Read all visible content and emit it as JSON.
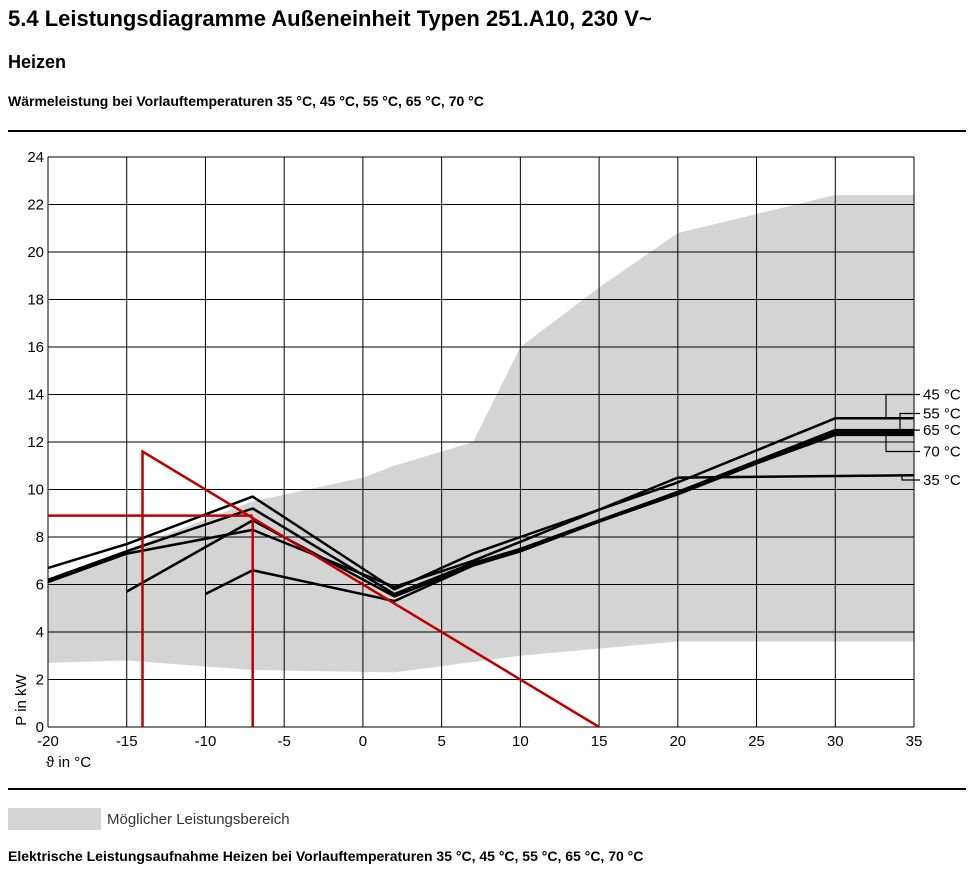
{
  "header": {
    "title": "5.4 Leistungsdiagramme Außeneinheit Typen 251.A10, 230 V~",
    "subtitle": "Heizen",
    "chart_caption": "Wärmeleistung bei Vorlauftemperaturen 35 °C, 45 °C, 55 °C, 65 °C, 70 °C"
  },
  "legend": {
    "area_label": "Möglicher Leistungsbereich"
  },
  "footer": {
    "text": "Elektrische Leistungsaufnahme Heizen bei Vorlauftemperaturen 35 °C, 45 °C, 55 °C, 65 °C, 70 °C"
  },
  "colors": {
    "area": "#d4d4d4",
    "curve": "#000000",
    "example": "#c00000",
    "grid": "#000000"
  },
  "chart_data": {
    "type": "line",
    "title": "",
    "xlabel": "ϑ in °C",
    "ylabel": "P in kW",
    "xlim": [
      -20,
      35
    ],
    "ylim": [
      0,
      24
    ],
    "xticks": [
      -20,
      -15,
      -10,
      -5,
      0,
      5,
      10,
      15,
      20,
      25,
      30,
      35
    ],
    "yticks": [
      0,
      2,
      4,
      6,
      8,
      10,
      12,
      14,
      16,
      18,
      20,
      22,
      24
    ],
    "grid": true,
    "area": {
      "name": "Möglicher Leistungsbereich",
      "upper": [
        [
          -20,
          6.2
        ],
        [
          -7,
          9.5
        ],
        [
          0,
          10.5
        ],
        [
          2,
          11
        ],
        [
          7,
          12
        ],
        [
          10,
          16
        ],
        [
          15,
          18.5
        ],
        [
          20,
          20.8
        ],
        [
          30,
          22.4
        ],
        [
          35,
          22.4
        ]
      ],
      "lower": [
        [
          -20,
          2.7
        ],
        [
          -15,
          2.8
        ],
        [
          -7,
          2.4
        ],
        [
          2,
          2.3
        ],
        [
          10,
          3.0
        ],
        [
          20,
          3.6
        ],
        [
          35,
          3.6
        ]
      ]
    },
    "series": [
      {
        "name": "35 °C",
        "points": [
          [
            -20,
            6.1
          ],
          [
            -15,
            7.3
          ],
          [
            -7,
            8.3
          ],
          [
            2,
            5.9
          ],
          [
            7,
            7.0
          ],
          [
            10,
            7.8
          ],
          [
            20,
            10.5
          ],
          [
            35,
            10.6
          ]
        ]
      },
      {
        "name": "45 °C",
        "points": [
          [
            -20,
            6.7
          ],
          [
            -15,
            7.7
          ],
          [
            -7,
            9.7
          ],
          [
            2,
            5.8
          ],
          [
            7,
            7.3
          ],
          [
            10,
            8.0
          ],
          [
            20,
            10.3
          ],
          [
            30,
            13.0
          ],
          [
            35,
            13.0
          ]
        ]
      },
      {
        "name": "55 °C",
        "points": [
          [
            -20,
            6.2
          ],
          [
            -15,
            7.4
          ],
          [
            -7,
            9.2
          ],
          [
            2,
            5.6
          ],
          [
            7,
            6.9
          ],
          [
            10,
            7.5
          ],
          [
            20,
            9.9
          ],
          [
            30,
            12.5
          ],
          [
            35,
            12.5
          ]
        ]
      },
      {
        "name": "65 °C",
        "points": [
          [
            -15,
            5.7
          ],
          [
            -7,
            8.7
          ],
          [
            2,
            5.5
          ],
          [
            7,
            6.8
          ],
          [
            10,
            7.5
          ],
          [
            20,
            9.8
          ],
          [
            30,
            12.4
          ],
          [
            35,
            12.4
          ]
        ]
      },
      {
        "name": "70 °C",
        "points": [
          [
            -10,
            5.6
          ],
          [
            -7,
            6.6
          ],
          [
            2,
            5.3
          ],
          [
            7,
            6.8
          ],
          [
            10,
            7.4
          ],
          [
            20,
            9.9
          ],
          [
            30,
            12.3
          ],
          [
            35,
            12.3
          ]
        ]
      }
    ],
    "series_labels": [
      {
        "name": "45 °C",
        "y": 14.0
      },
      {
        "name": "55 °C",
        "y": 13.2
      },
      {
        "name": "65 °C",
        "y": 12.5
      },
      {
        "name": "70 °C",
        "y": 11.6
      },
      {
        "name": "35 °C",
        "y": 10.4
      }
    ],
    "example_lines": [
      [
        [
          -14,
          0
        ],
        [
          -14,
          11.6
        ],
        [
          15,
          0
        ]
      ],
      [
        [
          -7,
          0
        ],
        [
          -7,
          8.8
        ]
      ],
      [
        [
          -20,
          8.9
        ],
        [
          -7,
          8.9
        ]
      ]
    ]
  }
}
